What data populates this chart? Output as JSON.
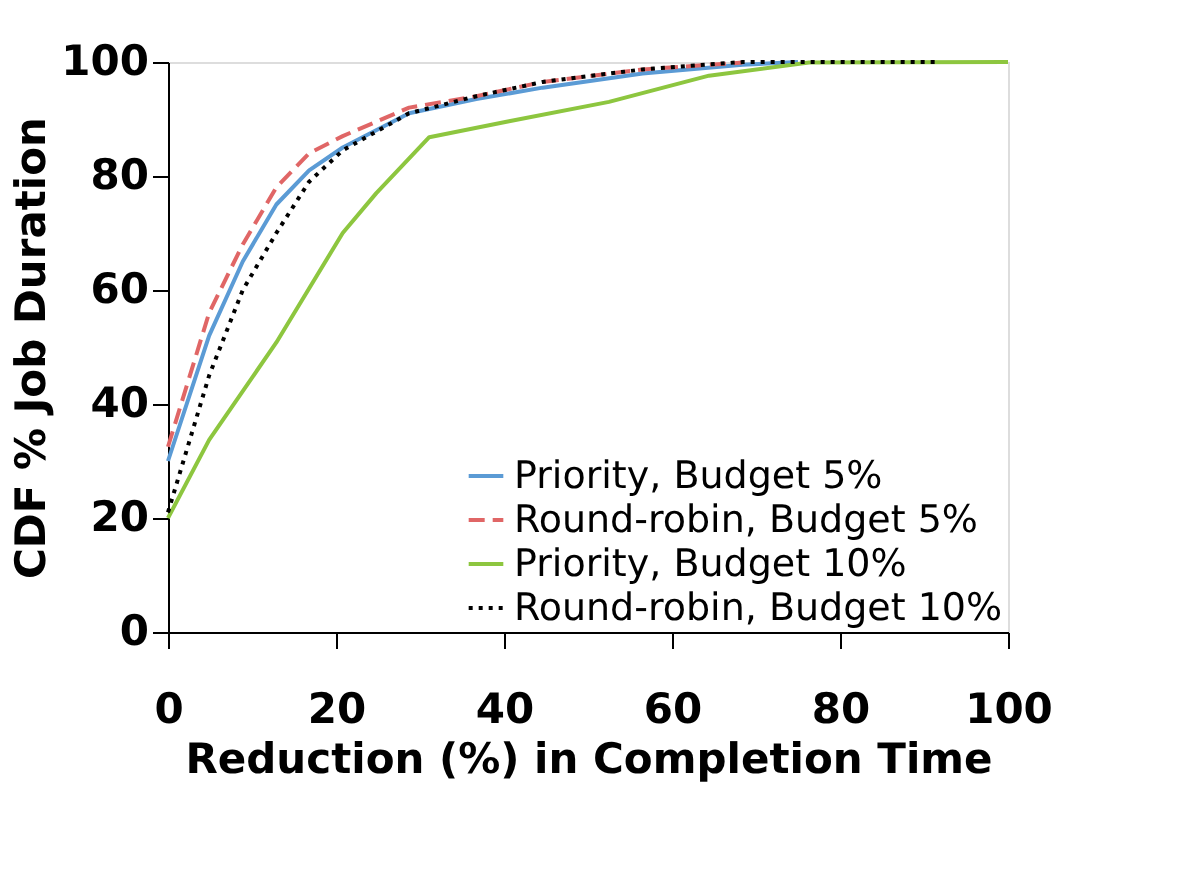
{
  "chart_data": {
    "type": "line",
    "xlabel": "Reduction (%) in Completion Time",
    "ylabel": "CDF % Job Duration",
    "xlim": [
      0,
      100
    ],
    "ylim": [
      0,
      100
    ],
    "xticks": [
      0,
      20,
      40,
      60,
      80,
      100
    ],
    "yticks": [
      0,
      20,
      40,
      60,
      80,
      100
    ],
    "grid": false,
    "legend": "bottom right",
    "marker": "none",
    "series": [
      {
        "name": "Priority, Budget 5%",
        "color": "#5b9bd5",
        "line_style": "solid",
        "x": [
          0,
          4.9,
          8.9,
          12.9,
          16.8,
          20.8,
          28.7,
          36.7,
          44.6,
          56.5,
          68.4,
          75
        ],
        "values": [
          30,
          52,
          65,
          75,
          81,
          85,
          91,
          93.5,
          95.5,
          98,
          99.5,
          100
        ]
      },
      {
        "name": "Round-robin, Budget 5%",
        "color": "#e06666",
        "line_style": "dashed",
        "x": [
          0,
          4.9,
          8.9,
          12.9,
          16.8,
          20.8,
          28.7,
          36.7,
          44.6,
          56.5,
          68.4
        ],
        "values": [
          32.5,
          56,
          68,
          78,
          84,
          87,
          92,
          94,
          96.5,
          98.7,
          99.9
        ]
      },
      {
        "name": "Priority, Budget 10%",
        "color": "#8dc63f",
        "line_style": "solid",
        "x": [
          0,
          4.9,
          12.9,
          20.8,
          24.8,
          31.1,
          40.6,
          52.5,
          64.4,
          76.3,
          100
        ],
        "values": [
          20,
          33.7,
          50.8,
          70,
          77,
          86.8,
          89.6,
          93,
          97.6,
          99.9,
          100
        ]
      },
      {
        "name": "Round-robin, Budget 10%",
        "color": "#000000",
        "line_style": "dotted",
        "x": [
          0,
          4.9,
          8.9,
          12.9,
          16.8,
          20.8,
          28.7,
          36.7,
          44.6,
          56.5,
          68.4,
          91.4
        ],
        "values": [
          21,
          45,
          60,
          70,
          79,
          84.5,
          91,
          94,
          96.5,
          98.7,
          100,
          100
        ]
      }
    ]
  }
}
